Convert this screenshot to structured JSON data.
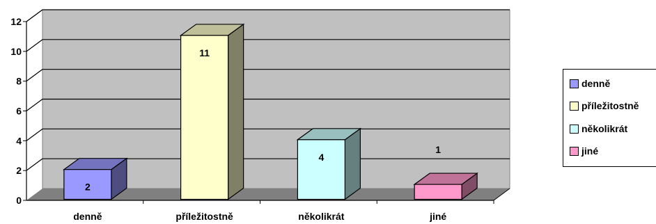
{
  "chart_data": {
    "type": "bar",
    "style": "3d-column",
    "categories": [
      "denně",
      "příležitostně",
      "několikrát",
      "jiné"
    ],
    "values": [
      2,
      11,
      4,
      1
    ],
    "data_labels": [
      "2",
      "11",
      "4",
      "1"
    ],
    "ylim": [
      0,
      12
    ],
    "yticks": [
      0,
      2,
      4,
      6,
      8,
      10,
      12
    ],
    "grid": true,
    "legend": "right",
    "colors": [
      "#9999FF",
      "#FFFFCC",
      "#CCFFFF",
      "#FF99CC"
    ],
    "side_colors": [
      "#4D4D80",
      "#808066",
      "#668080",
      "#804D66"
    ],
    "top_colors": [
      "#7373BF",
      "#BFBF99",
      "#99BFBF",
      "#BF7399"
    ],
    "wall_color": "#C0C0C0",
    "floor_color": "#808080"
  }
}
